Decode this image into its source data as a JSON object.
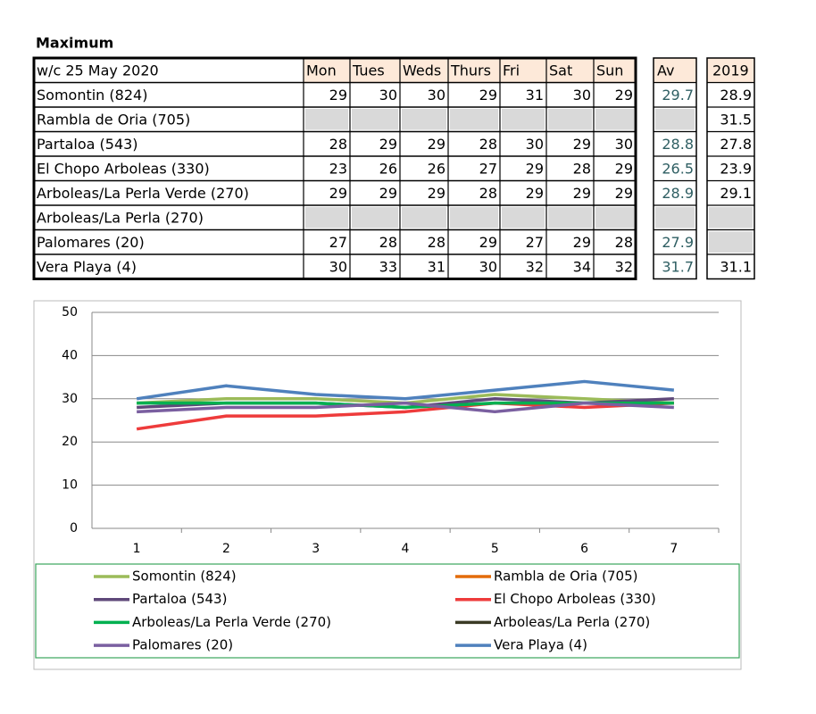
{
  "title": "Maximum",
  "table": {
    "header": [
      "w/c  25 May 2020",
      "Mon",
      "Tues",
      "Weds",
      "Thurs",
      "Fri",
      "Sat",
      "Sun"
    ],
    "av_header": "Av",
    "prev_header": "2019",
    "rows": [
      {
        "name": "Somontin (824)",
        "values": [
          29,
          30,
          30,
          29,
          31,
          30,
          29
        ],
        "av": 29.7,
        "prev": 28.9
      },
      {
        "name": "Rambla de Oria (705)",
        "values": [
          null,
          null,
          null,
          null,
          null,
          null,
          null
        ],
        "av": null,
        "prev": 31.5
      },
      {
        "name": "Partaloa (543)",
        "values": [
          28,
          29,
          29,
          28,
          30,
          29,
          30
        ],
        "av": 28.8,
        "prev": 27.8
      },
      {
        "name": "El Chopo  Arboleas (330)",
        "values": [
          23,
          26,
          26,
          27,
          29,
          28,
          29
        ],
        "av": 26.5,
        "prev": 23.9
      },
      {
        "name": "Arboleas/La Perla Verde (270)",
        "values": [
          29,
          29,
          29,
          28,
          29,
          29,
          29
        ],
        "av": 28.9,
        "prev": 29.1
      },
      {
        "name": "Arboleas/La Perla (270)",
        "values": [
          null,
          null,
          null,
          null,
          null,
          null,
          null
        ],
        "av": null,
        "prev": null
      },
      {
        "name": "Palomares (20)",
        "values": [
          27,
          28,
          28,
          29,
          27,
          29,
          28
        ],
        "av": 27.9,
        "prev": null
      },
      {
        "name": "Vera Playa (4)",
        "values": [
          30,
          33,
          31,
          30,
          32,
          34,
          32
        ],
        "av": 31.7,
        "prev": 31.1
      }
    ]
  },
  "chart_data": {
    "type": "line",
    "categories": [
      1,
      2,
      3,
      4,
      5,
      6,
      7
    ],
    "ylim": [
      0,
      50
    ],
    "yticks": [
      0,
      10,
      20,
      30,
      40,
      50
    ],
    "grid": true,
    "series": [
      {
        "name": "Somontin (824)",
        "color": "#9bbb59",
        "values": [
          29,
          30,
          30,
          29,
          31,
          30,
          29
        ]
      },
      {
        "name": "Rambla de Oria (705)",
        "color": "#e36c0a",
        "values": [
          null,
          null,
          null,
          null,
          null,
          null,
          null
        ]
      },
      {
        "name": "Partaloa (543)",
        "color": "#5f497a",
        "values": [
          28,
          29,
          29,
          28,
          30,
          29,
          30
        ]
      },
      {
        "name": "El Chopo  Arboleas (330)",
        "color": "#ee3b3b",
        "values": [
          23,
          26,
          26,
          27,
          29,
          28,
          29
        ]
      },
      {
        "name": "Arboleas/La Perla Verde (270)",
        "color": "#00b050",
        "values": [
          29,
          29,
          29,
          28,
          29,
          29,
          29
        ]
      },
      {
        "name": "Arboleas/La Perla (270)",
        "color": "#3a3a24",
        "values": [
          null,
          null,
          null,
          null,
          null,
          null,
          null
        ]
      },
      {
        "name": "Palomares (20)",
        "color": "#7a5fa0",
        "values": [
          27,
          28,
          28,
          29,
          27,
          29,
          28
        ]
      },
      {
        "name": "Vera Playa (4)",
        "color": "#4f81bd",
        "values": [
          30,
          33,
          31,
          30,
          32,
          34,
          32
        ]
      }
    ]
  }
}
